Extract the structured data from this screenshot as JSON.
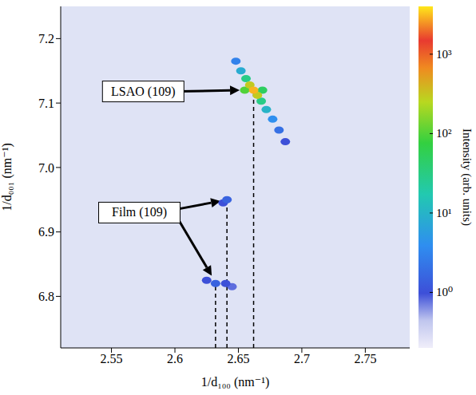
{
  "chart_data": {
    "type": "scatter",
    "title": null,
    "x_label": "1/d₁₀₀ (nm⁻¹)",
    "y_label": "1/d₀₀₁ (nm⁻¹)",
    "xlim": [
      2.51,
      2.785
    ],
    "xticks": [
      2.55,
      2.6,
      2.65,
      2.7,
      2.75
    ],
    "ylim": [
      6.72,
      7.25
    ],
    "yticks": [
      6.8,
      6.9,
      {
        "value": 7,
        "label": "7.0"
      },
      7.1,
      7.2
    ],
    "grid": false,
    "points": [
      {
        "x": 2.645,
        "y": 6.815,
        "intensity": 0.8
      },
      {
        "x": 2.625,
        "y": 6.825,
        "intensity": 1
      },
      {
        "x": 2.64,
        "y": 6.82,
        "intensity": 1
      },
      {
        "x": 2.632,
        "y": 6.82,
        "intensity": 1.5
      },
      {
        "x": 2.638,
        "y": 6.945,
        "intensity": 1
      },
      {
        "x": 2.641,
        "y": 6.95,
        "intensity": 1.5
      },
      {
        "x": 2.687,
        "y": 7.04,
        "intensity": 1
      },
      {
        "x": 2.682,
        "y": 7.058,
        "intensity": 2
      },
      {
        "x": 2.677,
        "y": 7.075,
        "intensity": 4
      },
      {
        "x": 2.648,
        "y": 7.165,
        "intensity": 3
      },
      {
        "x": 2.672,
        "y": 7.09,
        "intensity": 10
      },
      {
        "x": 2.652,
        "y": 7.15,
        "intensity": 8
      },
      {
        "x": 2.668,
        "y": 7.103,
        "intensity": 30
      },
      {
        "x": 2.656,
        "y": 7.138,
        "intensity": 30
      },
      {
        "x": 2.655,
        "y": 7.12,
        "intensity": 100
      },
      {
        "x": 2.669,
        "y": 7.12,
        "intensity": 50
      },
      {
        "x": 2.665,
        "y": 7.112,
        "intensity": 300
      },
      {
        "x": 2.659,
        "y": 7.128,
        "intensity": 300
      },
      {
        "x": 2.662,
        "y": 7.12,
        "intensity": 3000
      }
    ],
    "dashed_lines": [
      {
        "x": 2.632,
        "y_top": 6.82
      },
      {
        "x": 2.641,
        "y_top": 6.95
      },
      {
        "x": 2.662,
        "y_top": 7.12
      }
    ],
    "annotations": [
      {
        "text": "LSAO (109)",
        "x": 2.575,
        "y": 7.118,
        "arrows": [
          {
            "x_from": 2.604,
            "y_from": 7.118,
            "x_to": 2.651,
            "y_to": 7.12
          }
        ]
      },
      {
        "text": "Film (109)",
        "x": 2.572,
        "y": 6.93,
        "arrows": [
          {
            "x_from": 2.601,
            "y_from": 6.935,
            "x_to": 2.636,
            "y_to": 6.948
          },
          {
            "x_from": 2.601,
            "y_from": 6.925,
            "x_to": 2.629,
            "y_to": 6.832
          }
        ]
      }
    ],
    "colorbar": {
      "label": "Intensity (arb. units)",
      "log": true,
      "range": [
        0.2,
        4000
      ],
      "ticks": [
        {
          "value": 1,
          "label": "10⁰"
        },
        {
          "value": 10,
          "label": "10¹"
        },
        {
          "value": 100,
          "label": "10²"
        },
        {
          "value": 1000,
          "label": "10³"
        }
      ]
    }
  }
}
